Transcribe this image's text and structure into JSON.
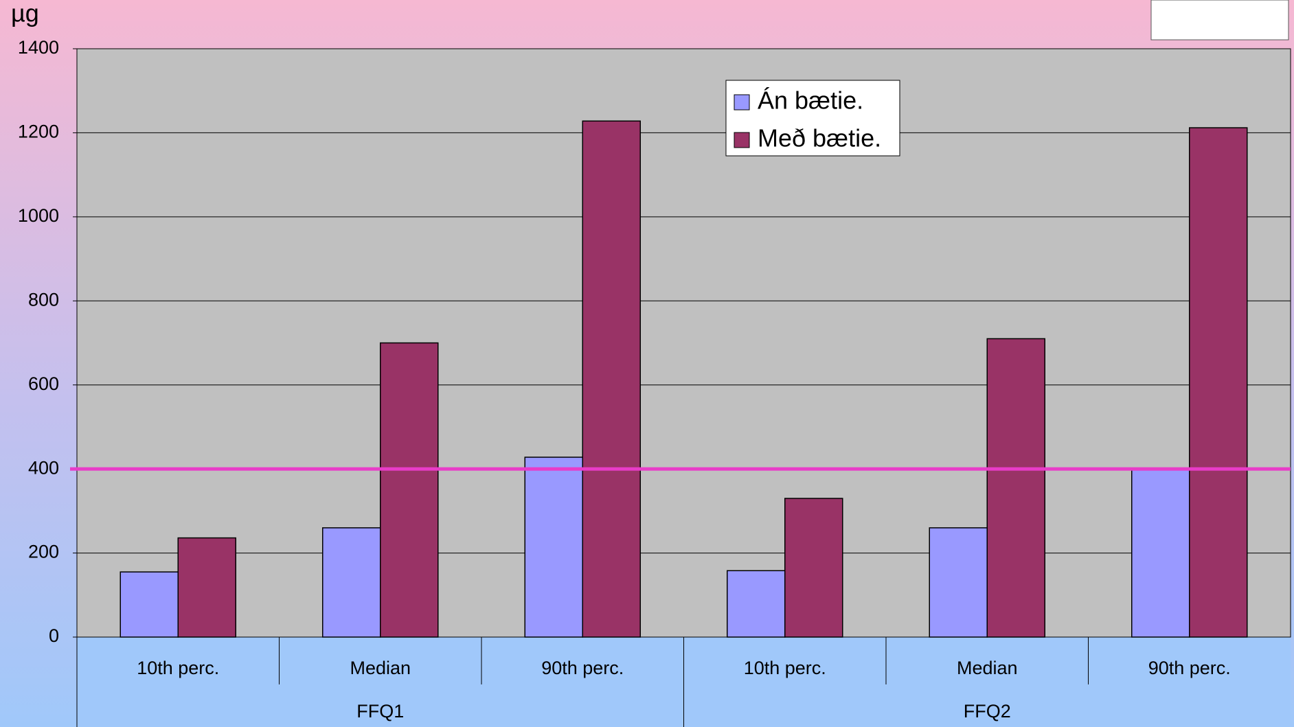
{
  "chart_data": {
    "type": "bar",
    "y_unit_label": "µg",
    "categories": [
      "10th perc.",
      "Median",
      "90th perc.",
      "10th perc.",
      "Median",
      "90th perc."
    ],
    "group_labels": [
      "FFQ1",
      "FFQ2"
    ],
    "series": [
      {
        "name": "Án bætie.",
        "color": "#9999ff",
        "values": [
          155,
          260,
          428,
          158,
          260,
          400
        ]
      },
      {
        "name": "Með bætie.",
        "color": "#993366",
        "values": [
          236,
          700,
          1228,
          330,
          710,
          1212
        ]
      }
    ],
    "ylim": [
      0,
      1400
    ],
    "yticks": [
      0,
      200,
      400,
      600,
      800,
      1000,
      1200,
      1400
    ],
    "grid": true,
    "reference_line": {
      "value": 400,
      "color": "#e83cc8"
    },
    "legend": "top-center"
  }
}
